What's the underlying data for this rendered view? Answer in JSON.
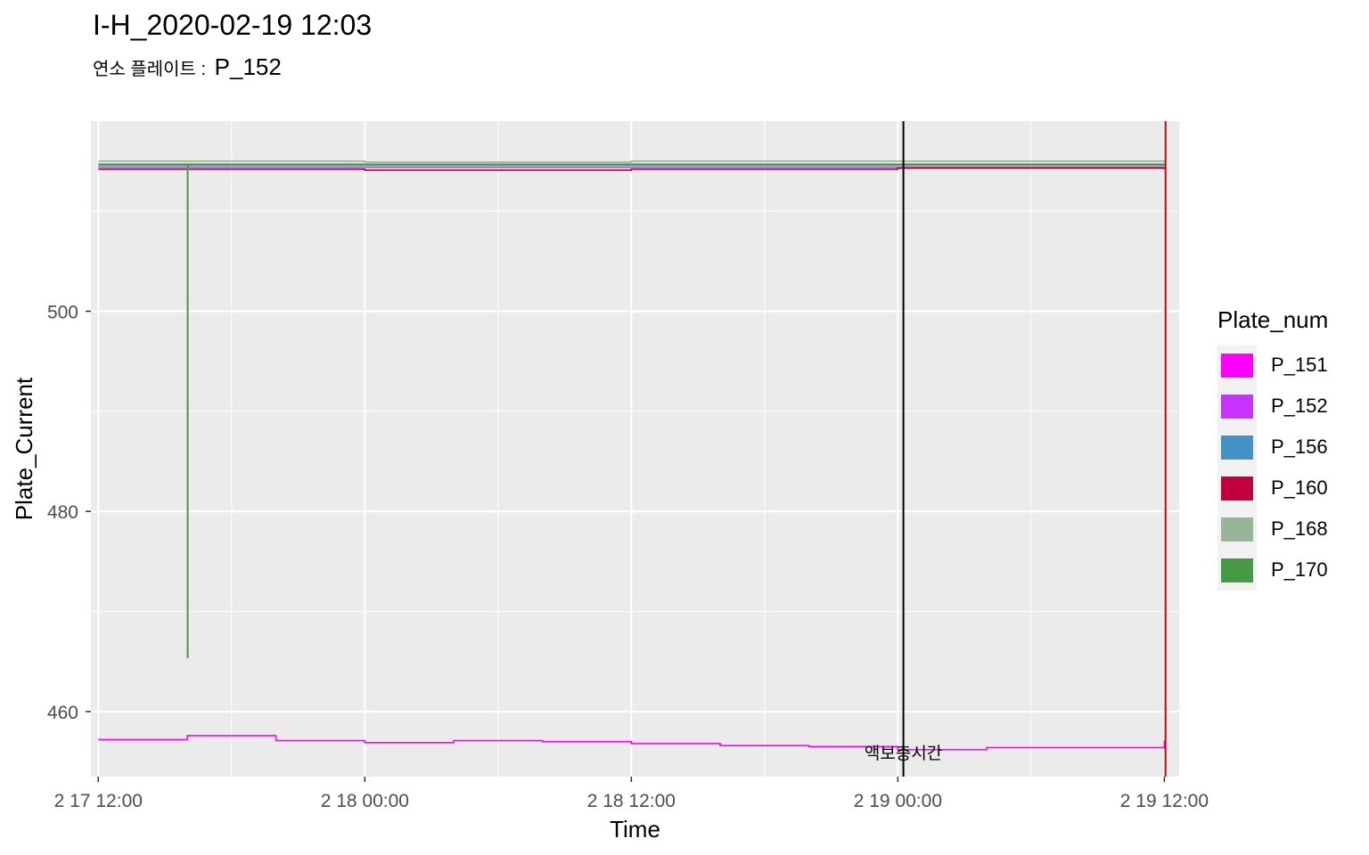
{
  "title": "I-H_2020-02-19 12:03",
  "subtitle": {
    "label": "연소 플레이트 :",
    "value": "P_152"
  },
  "chart_data": {
    "type": "line",
    "title": "I-H_2020-02-19 12:03",
    "xlabel": "Time",
    "ylabel": "Plate_Current",
    "x_ticks": [
      "2 17 12:00",
      "2 18 00:00",
      "2 18 12:00",
      "2 19 00:00",
      "2 19 12:00"
    ],
    "x_range": [
      "2020-02-17 11:40",
      "2020-02-19 12:40"
    ],
    "y_ticks": [
      460,
      480,
      500
    ],
    "ylim": [
      453.5,
      519
    ],
    "grid": true,
    "legend_title": "Plate_num",
    "legend_position": "right",
    "vlines": [
      {
        "x": "2020-02-19 00:15",
        "color": "#000000",
        "label": "액보충시간"
      },
      {
        "x": "2020-02-19 12:03",
        "color": "#cc0000",
        "label": ""
      }
    ],
    "series": [
      {
        "name": "P_151",
        "color": "#FF00FF",
        "x": [
          "2020-02-17 12:00",
          "2020-02-17 16:00",
          "2020-02-17 20:00",
          "2020-02-18 00:00",
          "2020-02-18 04:00",
          "2020-02-18 08:00",
          "2020-02-18 12:00",
          "2020-02-18 16:00",
          "2020-02-18 20:00",
          "2020-02-19 00:00",
          "2020-02-19 04:00",
          "2020-02-19 08:00",
          "2020-02-19 12:00"
        ],
        "values": [
          457.2,
          457.6,
          457.1,
          456.9,
          457.1,
          457.0,
          456.8,
          456.6,
          456.5,
          456.2,
          456.4,
          456.4,
          457.1
        ]
      },
      {
        "name": "P_152",
        "color": "#C633FF",
        "x": [
          "2020-02-17 12:00",
          "2020-02-18 00:00",
          "2020-02-18 12:00",
          "2020-02-19 00:00",
          "2020-02-19 12:00"
        ],
        "values": [
          514.4,
          514.4,
          514.4,
          514.4,
          514.4
        ]
      },
      {
        "name": "P_156",
        "color": "#4292C6",
        "x": [
          "2020-02-17 12:00",
          "2020-02-18 00:00",
          "2020-02-18 12:00",
          "2020-02-19 00:00",
          "2020-02-19 12:00"
        ],
        "values": [
          514.6,
          514.6,
          514.6,
          514.6,
          514.6
        ]
      },
      {
        "name": "P_160",
        "color": "#C2003D",
        "x": [
          "2020-02-17 12:00",
          "2020-02-18 00:00",
          "2020-02-18 12:00",
          "2020-02-19 00:00",
          "2020-02-19 12:00"
        ],
        "values": [
          514.2,
          514.1,
          514.2,
          514.3,
          514.2
        ]
      },
      {
        "name": "P_168",
        "color": "#98B598",
        "x": [
          "2020-02-17 12:00",
          "2020-02-18 00:00",
          "2020-02-18 12:00",
          "2020-02-19 00:00",
          "2020-02-19 12:00"
        ],
        "values": [
          515.0,
          514.9,
          515.0,
          515.0,
          514.9
        ]
      },
      {
        "name": "P_170",
        "color": "#469A46",
        "x": [
          "2020-02-17 12:00",
          "2020-02-17 16:00",
          "2020-02-17 16:01",
          "2020-02-17 16:02",
          "2020-02-18 00:00",
          "2020-02-18 12:00",
          "2020-02-19 00:00",
          "2020-02-19 12:00"
        ],
        "values": [
          514.7,
          514.7,
          465.4,
          514.7,
          514.7,
          514.7,
          514.7,
          514.7
        ]
      }
    ]
  }
}
